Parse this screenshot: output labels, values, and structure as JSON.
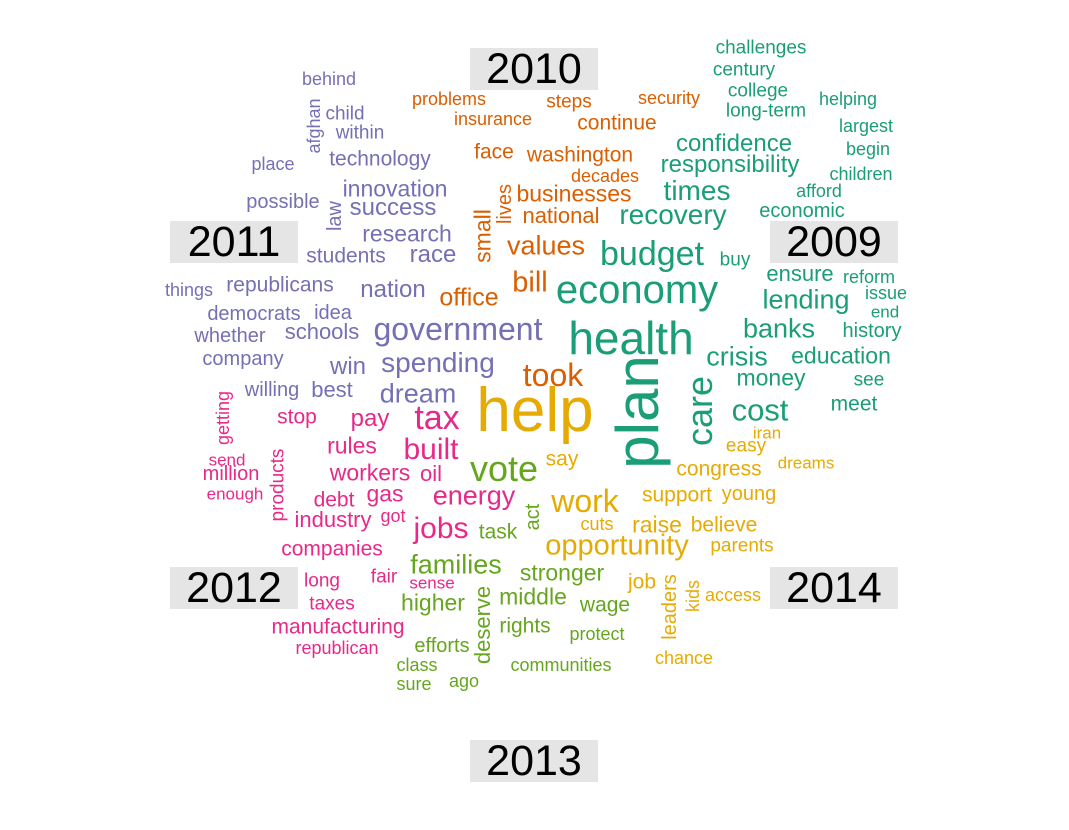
{
  "palette": {
    "2009": "#1b9e77",
    "2010": "#d95f02",
    "2011": "#7570b3",
    "2012": "#e7298a",
    "2013": "#66a61e",
    "2014": "#e6ab02"
  },
  "years": [
    "2010",
    "2011",
    "2009",
    "2012",
    "2014",
    "2013"
  ],
  "words": {
    "w2009": [
      "challenges",
      "century",
      "college",
      "long-term",
      "helping",
      "largest",
      "begin",
      "children",
      "afford",
      "economic",
      "confidence",
      "responsibility",
      "times",
      "recovery",
      "budget",
      "buy",
      "economy",
      "ensure",
      "reform",
      "issue",
      "end",
      "lending",
      "banks",
      "history",
      "health",
      "crisis",
      "education",
      "money",
      "see",
      "meet",
      "cost",
      "care",
      "plan"
    ],
    "w2010": [
      "problems",
      "steps",
      "security",
      "insurance",
      "continue",
      "face",
      "washington",
      "decades",
      "businesses",
      "lives",
      "national",
      "small",
      "values",
      "bill",
      "office",
      "took"
    ],
    "w2011": [
      "behind",
      "afghan",
      "child",
      "within",
      "technology",
      "place",
      "innovation",
      "possible",
      "success",
      "law",
      "research",
      "students",
      "race",
      "things",
      "republicans",
      "nation",
      "democrats",
      "idea",
      "government",
      "whether",
      "schools",
      "company",
      "win",
      "spending",
      "willing",
      "best",
      "dream"
    ],
    "w2012": [
      "getting",
      "stop",
      "pay",
      "tax",
      "rules",
      "built",
      "send",
      "million",
      "products",
      "workers",
      "oil",
      "enough",
      "gas",
      "debt",
      "energy",
      "industry",
      "got",
      "jobs",
      "companies",
      "fair",
      "long",
      "sense",
      "taxes",
      "manufacturing",
      "republican"
    ],
    "w2013": [
      "vote",
      "task",
      "act",
      "families",
      "stronger",
      "higher",
      "deserve",
      "middle",
      "wage",
      "rights",
      "protect",
      "efforts",
      "class",
      "communities",
      "sure",
      "ago"
    ],
    "w2014": [
      "help",
      "iran",
      "easy",
      "dreams",
      "congress",
      "say",
      "support",
      "young",
      "work",
      "cuts",
      "raise",
      "believe",
      "opportunity",
      "parents",
      "job",
      "leaders",
      "kids",
      "access",
      "chance"
    ]
  }
}
